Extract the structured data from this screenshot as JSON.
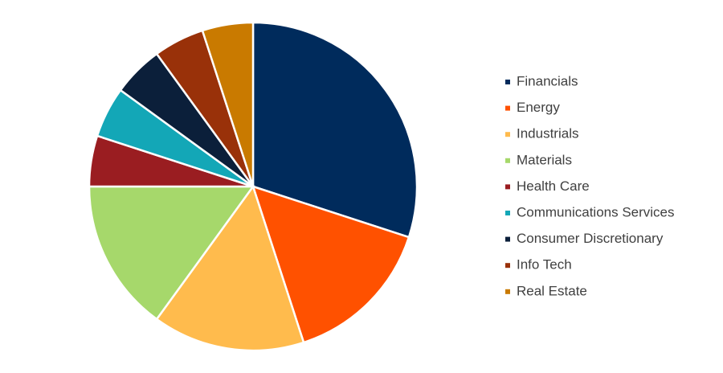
{
  "chart_data": {
    "type": "pie",
    "categories": [
      "Financials",
      "Energy",
      "Industrials",
      "Materials",
      "Health Care",
      "Communications Services",
      "Consumer Discretionary",
      "Info Tech",
      "Real Estate"
    ],
    "values": [
      30,
      15,
      15,
      15,
      5,
      5,
      5,
      5,
      5
    ],
    "colors": [
      "#002b5c",
      "#ff5100",
      "#ffbb4d",
      "#a6d86b",
      "#9a1d21",
      "#13a7b7",
      "#0b1f3a",
      "#993109",
      "#c97a00"
    ],
    "legend": "right"
  }
}
